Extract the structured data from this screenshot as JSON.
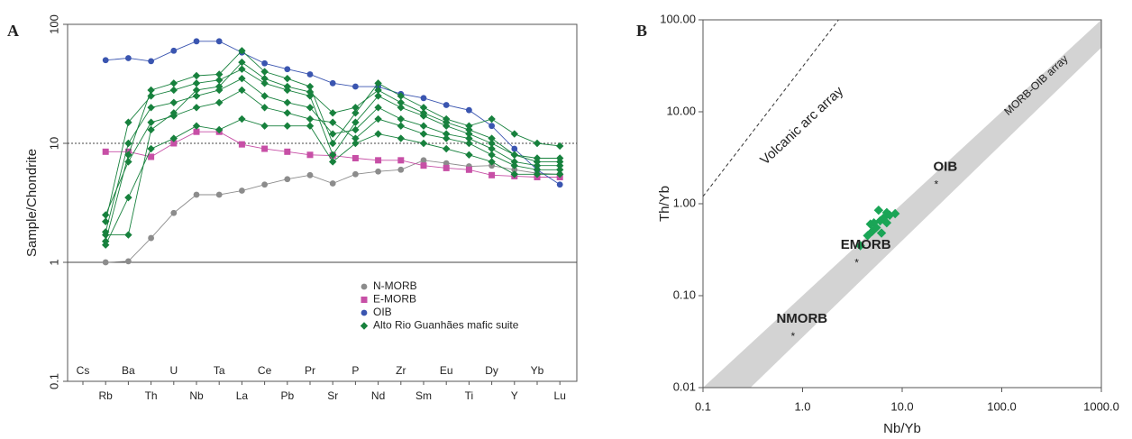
{
  "chart_data": [
    {
      "type": "line",
      "panel": "A",
      "y_label": "Sample/Chondrite",
      "log_y": true,
      "categories": [
        "Cs",
        "Rb",
        "Ba",
        "Th",
        "U",
        "Nb",
        "Ta",
        "La",
        "Ce",
        "Pb",
        "Pr",
        "Sr",
        "P",
        "Nd",
        "Zr",
        "Sm",
        "Eu",
        "Ti",
        "Dy",
        "Y",
        "Yb",
        "Lu"
      ],
      "ylim": [
        0.1,
        100
      ],
      "yticks": [
        0.1,
        1,
        10,
        100
      ],
      "reference_lines": [
        {
          "y": 10,
          "style": "dotted"
        },
        {
          "y": 1,
          "style": "solid"
        }
      ],
      "series": [
        {
          "name": "N-MORB",
          "color": "#8c8c8c",
          "marker": "circle",
          "values": [
            null,
            1.0,
            1.02,
            1.6,
            2.6,
            3.7,
            3.7,
            4.0,
            4.5,
            5.0,
            5.4,
            4.6,
            5.5,
            5.8,
            6.0,
            7.2,
            6.8,
            6.4,
            6.5,
            6.0,
            5.6,
            5.5
          ]
        },
        {
          "name": "E-MORB",
          "color": "#c74fa6",
          "marker": "square",
          "values": [
            null,
            8.5,
            8.5,
            7.7,
            10,
            12.5,
            12.5,
            9.8,
            9.0,
            8.5,
            8.0,
            7.9,
            7.5,
            7.2,
            7.2,
            6.5,
            6.2,
            6.0,
            5.4,
            5.3,
            5.2,
            5.2
          ]
        },
        {
          "name": "OIB",
          "color": "#3a55b0",
          "marker": "circle",
          "values": [
            null,
            50,
            52,
            49,
            60,
            72,
            72,
            58,
            47,
            42,
            38,
            32,
            30,
            30,
            26,
            24,
            21,
            19,
            14,
            9,
            6,
            4.5
          ]
        },
        {
          "name": "Alto Rio Guanhães mafic suite",
          "color": "#17813d",
          "marker": "diamond",
          "samples": [
            [
              null,
              1.5,
              8,
              28,
              32,
              37,
              38,
              60,
              40,
              35,
              30,
              10,
              18,
              32,
              25,
              20,
              16,
              14,
              16,
              12,
              10,
              9.5
            ],
            [
              null,
              2.2,
              15,
              25,
              28,
              32,
              34,
              42,
              32,
              28,
              25,
              8,
              15,
              25,
              20,
              17,
              14,
              12,
              10,
              8,
              7.5,
              7.5
            ],
            [
              null,
              1.8,
              10,
              20,
              22,
              25,
              28,
              35,
              25,
              22,
              20,
              12,
              13,
              20,
              16,
              14,
              12,
              11,
              9,
              7,
              6.5,
              6.5
            ],
            [
              null,
              2.5,
              7,
              15,
              17,
              20,
              22,
              28,
              20,
              18,
              16,
              15,
              11,
              16,
              14,
              12,
              11,
              10,
              8,
              6.5,
              6,
              6
            ],
            [
              null,
              1.4,
              3.5,
              9,
              11,
              14,
              13,
              16,
              14,
              14,
              14,
              7,
              10,
              12,
              11,
              10,
              9,
              8,
              7,
              5.5,
              5.5,
              5.5
            ],
            [
              null,
              1.7,
              1.7,
              13,
              18,
              28,
              30,
              48,
              35,
              30,
              27,
              18,
              20,
              28,
              22,
              18,
              15,
              13,
              11,
              8,
              7,
              7
            ]
          ]
        }
      ]
    },
    {
      "type": "scatter",
      "panel": "B",
      "x_label": "Nb/Yb",
      "y_label": "Th/Yb",
      "log_x": true,
      "log_y": true,
      "xlim": [
        0.1,
        1000
      ],
      "ylim": [
        0.01,
        100
      ],
      "xticks": [
        0.1,
        {
          "value": 1,
          "label": "1.0"
        },
        {
          "value": 10,
          "label": "10.0"
        },
        {
          "value": 100,
          "label": "100.0"
        },
        {
          "value": 1000,
          "label": "1000.0"
        }
      ],
      "yticks": [
        0.01,
        {
          "value": 0.1,
          "label": "0.10"
        },
        {
          "value": 1,
          "label": "1.00"
        },
        {
          "value": 10,
          "label": "10.00"
        },
        {
          "value": 100,
          "label": "100.00"
        }
      ],
      "bands": [
        {
          "label": "MORB-OIB array",
          "color": "#d3d3d3",
          "x": [
            0.1,
            1000,
            1000,
            0.3
          ],
          "y": [
            0.01,
            100,
            50,
            0.01
          ]
        }
      ],
      "reference_lines": [
        {
          "label": "Volcanic arc array",
          "x": [
            0.1,
            2.3
          ],
          "y": [
            1.2,
            100
          ]
        }
      ],
      "reference_points": [
        {
          "label": "NMORB",
          "x": 0.8,
          "y": 0.038
        },
        {
          "label": "EMORB",
          "x": 3.5,
          "y": 0.24
        },
        {
          "label": "OIB",
          "x": 22,
          "y": 1.7
        }
      ],
      "points": {
        "color": "#1aa556",
        "x": [
          3.8,
          4.5,
          5.0,
          5.5,
          6.0,
          6.5,
          7.0,
          7.5,
          8.5,
          5.2,
          6.2,
          4.8,
          7.0,
          5.8
        ],
        "y": [
          0.35,
          0.45,
          0.5,
          0.55,
          0.65,
          0.7,
          0.8,
          0.75,
          0.78,
          0.62,
          0.48,
          0.6,
          0.62,
          0.85
        ]
      }
    }
  ]
}
